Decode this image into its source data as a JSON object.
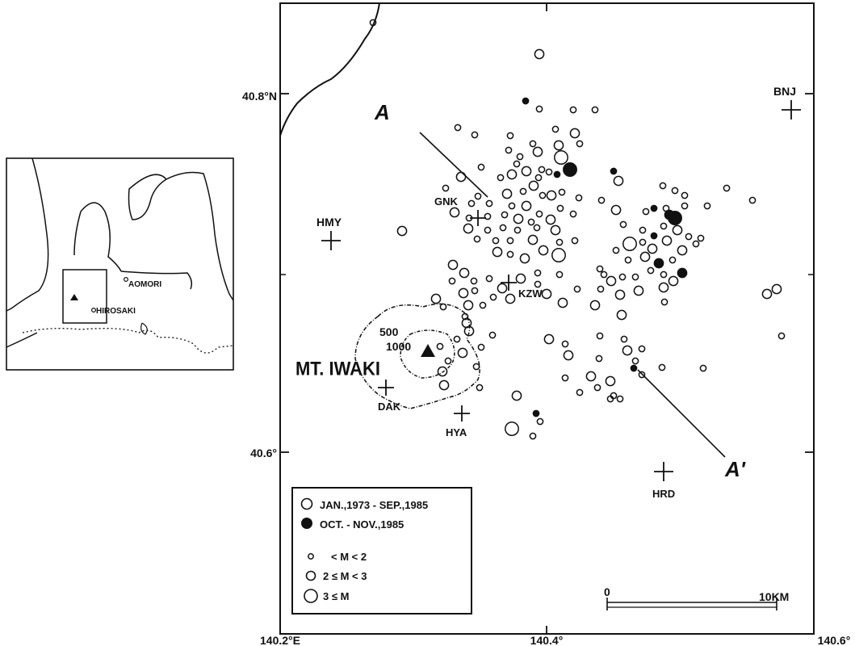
{
  "axes": {
    "lat_ticks": [
      {
        "label": "40.8°N",
        "lat": 40.8
      },
      {
        "label": "40.6°",
        "lat": 40.6
      }
    ],
    "lon_ticks": [
      {
        "label": "140.2°E",
        "lon": 140.2
      },
      {
        "label": "140.4°",
        "lon": 140.4
      },
      {
        "label": "140.6°",
        "lon": 140.6
      }
    ]
  },
  "stations": [
    {
      "code": "BNJ"
    },
    {
      "code": "HMY"
    },
    {
      "code": "GNK"
    },
    {
      "code": "KZW"
    },
    {
      "code": "DAK"
    },
    {
      "code": "HYA"
    },
    {
      "code": "HRD"
    }
  ],
  "profile": {
    "start_label": "A",
    "end_label": "A'"
  },
  "volcano": {
    "name": "MT. IWAKI",
    "contour_outer": "500",
    "contour_inner": "1000"
  },
  "inset": {
    "city1": "AOMORI",
    "city2": "HIROSAKI"
  },
  "legend": {
    "open_label": "JAN.,1973 - SEP.,1985",
    "filled_label": "OCT. - NOV.,1985",
    "small_label": "< M < 2",
    "medium_label": "2 ≤ M < 3",
    "large_label": "3 ≤ M"
  },
  "scale_bar": {
    "start": "0",
    "end": "10KM"
  },
  "colors": {
    "ink": "#111111",
    "background": "#ffffff"
  }
}
